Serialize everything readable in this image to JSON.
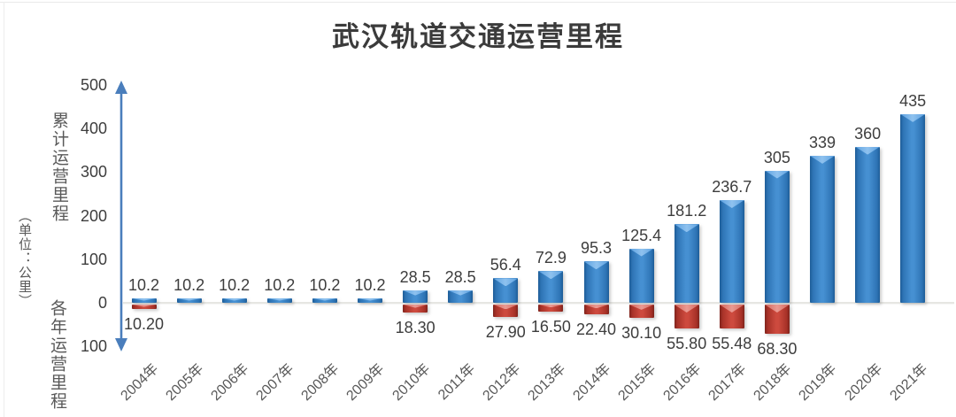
{
  "title": "武汉轨道交通运营里程",
  "y_axis": {
    "tick_labels": [
      "500",
      "400",
      "300",
      "200",
      "100",
      "0",
      "100"
    ],
    "label_cumulative": "累计运营里程",
    "label_unit": "（单位：公里）",
    "label_annual": "各年运营里程"
  },
  "colors": {
    "cumulative_bar": "#2e74b5",
    "annual_bar": "#c13a30",
    "axis_arrow": "#4a7ebc",
    "zero_line": "#e6e6e2"
  },
  "chart_data": {
    "type": "bar",
    "title": "武汉轨道交通运营里程",
    "categories": [
      "2004年",
      "2005年",
      "2006年",
      "2007年",
      "2008年",
      "2009年",
      "2010年",
      "2011年",
      "2012年",
      "2013年",
      "2014年",
      "2015年",
      "2016年",
      "2017年",
      "2018年",
      "2019年",
      "2020年",
      "2021年"
    ],
    "series": [
      {
        "name": "累计运营里程",
        "direction": "up",
        "color": "#2e74b5",
        "values": [
          10.2,
          10.2,
          10.2,
          10.2,
          10.2,
          10.2,
          28.5,
          28.5,
          56.4,
          72.9,
          95.3,
          125.4,
          181.2,
          236.7,
          305,
          339,
          360,
          435
        ],
        "labels": [
          "10.2",
          "10.2",
          "10.2",
          "10.2",
          "10.2",
          "10.2",
          "28.5",
          "28.5",
          "56.4",
          "72.9",
          "95.3",
          "125.4",
          "181.2",
          "236.7",
          "305",
          "339",
          "360",
          "435"
        ]
      },
      {
        "name": "各年运营里程",
        "direction": "down",
        "color": "#c13a30",
        "values": [
          10.2,
          null,
          null,
          null,
          null,
          null,
          18.3,
          null,
          27.9,
          16.5,
          22.4,
          30.1,
          55.8,
          55.48,
          68.3,
          null,
          null,
          null
        ],
        "labels": [
          "10.20",
          "",
          "",
          "",
          "",
          "",
          "18.30",
          "",
          "27.90",
          "16.50",
          "22.40",
          "30.10",
          "55.80",
          "55.48",
          "68.30",
          "",
          "",
          ""
        ]
      }
    ],
    "y_axis_top_range": [
      0,
      500
    ],
    "y_axis_bottom_range": [
      0,
      100
    ],
    "unit": "公里",
    "grid": false,
    "legend": "none"
  }
}
